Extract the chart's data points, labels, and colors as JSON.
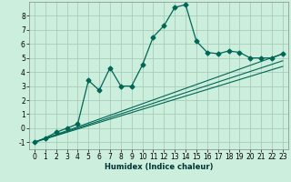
{
  "title": "",
  "xlabel": "Humidex (Indice chaleur)",
  "bg_color": "#cceedd",
  "grid_color": "#aaccbb",
  "line_color": "#006655",
  "xlim": [
    -0.5,
    23.5
  ],
  "ylim": [
    -1.5,
    9.0
  ],
  "xticks": [
    0,
    1,
    2,
    3,
    4,
    5,
    6,
    7,
    8,
    9,
    10,
    11,
    12,
    13,
    14,
    15,
    16,
    17,
    18,
    19,
    20,
    21,
    22,
    23
  ],
  "yticks": [
    -1,
    0,
    1,
    2,
    3,
    4,
    5,
    6,
    7,
    8
  ],
  "main_line_x": [
    0,
    1,
    2,
    3,
    4,
    5,
    6,
    7,
    8,
    9,
    10,
    11,
    12,
    13,
    14,
    15,
    16,
    17,
    18,
    19,
    20,
    21,
    22,
    23
  ],
  "main_line_y": [
    -1,
    -0.7,
    -0.3,
    0.0,
    0.3,
    3.4,
    2.7,
    4.3,
    3.0,
    3.0,
    4.5,
    6.5,
    7.3,
    8.6,
    8.8,
    6.2,
    5.4,
    5.3,
    5.5,
    5.4,
    5.0,
    5.0,
    5.0,
    5.3
  ],
  "line2_x": [
    0,
    23
  ],
  "line2_y": [
    -1,
    5.3
  ],
  "line3_x": [
    0,
    23
  ],
  "line3_y": [
    -1,
    4.8
  ],
  "line4_x": [
    0,
    23
  ],
  "line4_y": [
    -1,
    4.4
  ],
  "xlabel_fontsize": 6.0,
  "tick_fontsize": 5.5,
  "marker_size": 2.5
}
